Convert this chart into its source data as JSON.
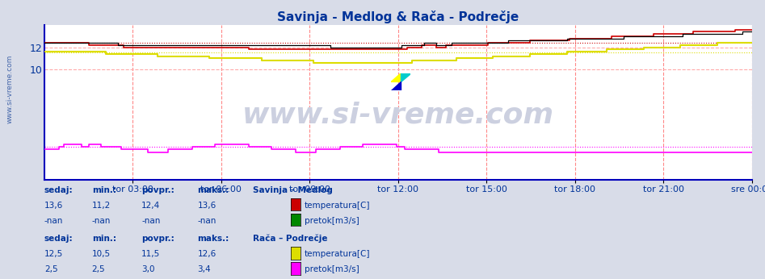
{
  "title": "Savinja - Medlog & Rača - Podrečje",
  "title_color": "#003399",
  "bg_color": "#d8dce8",
  "plot_bg_color": "#ffffff",
  "grid_color_v": "#ff8888",
  "grid_color_h": "#ffaaaa",
  "n_points": 288,
  "x_end": 1440,
  "x_ticks_labels": [
    "tor 03:00",
    "tor 06:00",
    "tor 09:00",
    "tor 12:00",
    "tor 15:00",
    "tor 18:00",
    "tor 21:00",
    "sre 00:00"
  ],
  "x_ticks_pos": [
    180,
    360,
    540,
    720,
    900,
    1080,
    1260,
    1440
  ],
  "ylim": [
    0,
    14.0
  ],
  "yticks": [
    10,
    12
  ],
  "savinja_temp_color": "#cc0000",
  "savinja_temp_avg": 12.4,
  "savinja_visina_color": "#000000",
  "raca_temp_color": "#dddd00",
  "raca_temp_avg": 11.5,
  "raca_pretok_color": "#ff00ff",
  "raca_pretok_avg": 3.0,
  "watermark": "www.si-vreme.com",
  "watermark_color": "#ccd0e0",
  "sidebar_text": "www.si-vreme.com",
  "sidebar_color": "#4466aa",
  "legend_color": "#003399",
  "box_color_savinja_temp": "#cc0000",
  "box_color_savinja_pretok": "#008800",
  "box_color_raca_temp": "#dddd00",
  "box_color_raca_pretok": "#ff00ff",
  "axis_color": "#0000bb",
  "tick_color": "#003399"
}
